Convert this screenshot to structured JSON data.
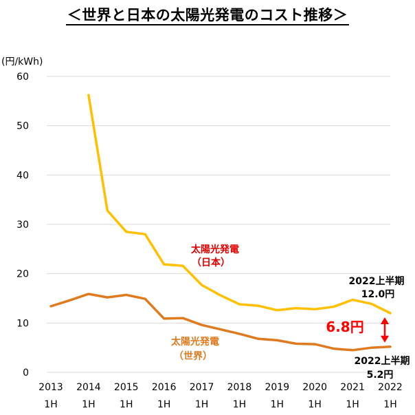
{
  "title": "＜世界と日本の太陽光発電のコスト推移＞",
  "unit_label": "(円/kWh)",
  "colors": {
    "japan": "#FFC000",
    "world": "#E07A1F",
    "gap": "#FF0000",
    "grid": "#D9D9D9"
  },
  "chart_data": {
    "type": "line",
    "ylabel": "(円/kWh)",
    "ylim": [
      0,
      60
    ],
    "yticks": [
      0,
      10,
      20,
      30,
      40,
      50,
      60
    ],
    "x_ticks": [
      {
        "year": "2013",
        "half": "1H"
      },
      {
        "year": "2014",
        "half": "1H"
      },
      {
        "year": "2015",
        "half": "1H"
      },
      {
        "year": "2016",
        "half": "1H"
      },
      {
        "year": "2017",
        "half": "1H"
      },
      {
        "year": "2018",
        "half": "1H"
      },
      {
        "year": "2019",
        "half": "1H"
      },
      {
        "year": "2020",
        "half": "1H"
      },
      {
        "year": "2021",
        "half": "1H"
      },
      {
        "year": "2022",
        "half": "1H"
      }
    ],
    "grid": true,
    "series": [
      {
        "name": "太陽光発電（日本）",
        "label_line1": "太陽光発電",
        "label_line2": "（日本）",
        "x": [
          2014.0,
          2014.5,
          2015.0,
          2015.5,
          2016.0,
          2016.5,
          2017.0,
          2017.5,
          2018.0,
          2018.5,
          2019.0,
          2019.5,
          2020.0,
          2020.5,
          2021.0,
          2021.5,
          2022.0
        ],
        "values": [
          56.2,
          32.8,
          28.5,
          28.0,
          21.9,
          21.6,
          17.7,
          15.6,
          13.8,
          13.5,
          12.6,
          13.0,
          12.8,
          13.3,
          14.7,
          13.9,
          12.0
        ]
      },
      {
        "name": "太陽光発電（世界）",
        "label_line1": "太陽光発電",
        "label_line2": "（世界）",
        "x": [
          2013.0,
          2013.5,
          2014.0,
          2014.5,
          2015.0,
          2015.5,
          2016.0,
          2016.5,
          2017.0,
          2017.5,
          2018.0,
          2018.5,
          2019.0,
          2019.5,
          2020.0,
          2020.5,
          2021.0,
          2021.5,
          2022.0
        ],
        "values": [
          13.4,
          14.6,
          15.9,
          15.2,
          15.7,
          14.9,
          10.9,
          11.0,
          9.6,
          8.7,
          7.8,
          6.8,
          6.5,
          5.8,
          5.7,
          4.8,
          4.5,
          5.0,
          5.2
        ]
      }
    ],
    "annotations": {
      "japan_end_period": "2022上半期",
      "japan_end_value": "12.0円",
      "world_end_period": "2022上半期",
      "world_end_value": "5.2円",
      "gap": "6.8円"
    }
  }
}
